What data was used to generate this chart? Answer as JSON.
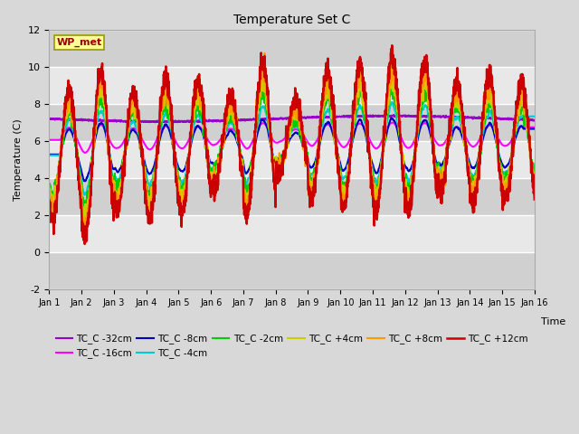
{
  "title": "Temperature Set C",
  "xlabel": "Time",
  "ylabel": "Temperature (C)",
  "ylim": [
    -2,
    12
  ],
  "xlim": [
    0,
    15
  ],
  "fig_bg": "#d8d8d8",
  "plot_bg": "#e0e0e0",
  "grid_color": "#ffffff",
  "series_colors": {
    "TC_C -32cm": "#9900cc",
    "TC_C -16cm": "#ff00ff",
    "TC_C -8cm": "#0000bb",
    "TC_C -4cm": "#00cccc",
    "TC_C -2cm": "#00cc00",
    "TC_C +4cm": "#cccc00",
    "TC_C +8cm": "#ff9900",
    "TC_C +12cm": "#cc0000"
  },
  "xtick_labels": [
    "Jan 1",
    "Jan 2",
    "Jan 3",
    "Jan 4",
    "Jan 5",
    "Jan 6",
    "Jan 7",
    "Jan 8",
    "Jan 9",
    "Jan 10",
    "Jan 11",
    "Jan 12",
    "Jan 13",
    "Jan 14",
    "Jan 15",
    "Jan 16"
  ],
  "ytick_values": [
    -2,
    0,
    2,
    4,
    6,
    8,
    10,
    12
  ],
  "wp_met_box_color": "#ffff99",
  "wp_met_text_color": "#990000",
  "wp_met_border_color": "#999900",
  "legend_order": [
    "TC_C -32cm",
    "TC_C -16cm",
    "TC_C -8cm",
    "TC_C -4cm",
    "TC_C -2cm",
    "TC_C +4cm",
    "TC_C +8cm",
    "TC_C +12cm"
  ]
}
